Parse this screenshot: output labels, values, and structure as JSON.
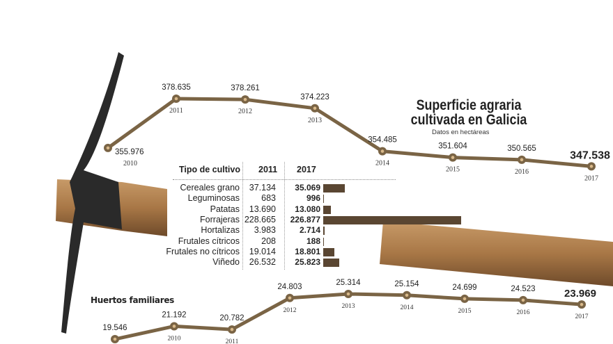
{
  "title": "Superficie agraria cultivada en Galicia",
  "title_line1": "Superficie agraria",
  "title_line2": "cultivada en Galicia",
  "subtitle": "Datos en hectáreas",
  "colors": {
    "line": "#7a6445",
    "bar": "#5a4632",
    "marker_fill": "#d9b98a"
  },
  "chart_data": [
    {
      "type": "line",
      "title": "Superficie agraria cultivada en Galicia",
      "x": [
        "2010",
        "2011",
        "2012",
        "2013",
        "2014",
        "2015",
        "2016",
        "2017"
      ],
      "values": [
        355976,
        378635,
        378261,
        374223,
        354485,
        351604,
        350565,
        347538
      ],
      "labels": [
        "355.976",
        "378.635",
        "378.261",
        "374.223",
        "354.485",
        "351.604",
        "350.565",
        "347.538"
      ]
    },
    {
      "type": "table",
      "headers": [
        "Tipo de cultivo",
        "2011",
        "2017"
      ],
      "rows": [
        {
          "name": "Cereales grano",
          "v2011": "37.134",
          "v2017": "35.069",
          "value": 35069
        },
        {
          "name": "Leguminosas",
          "v2011": "683",
          "v2017": "996",
          "value": 996
        },
        {
          "name": "Patatas",
          "v2011": "13.690",
          "v2017": "13.080",
          "value": 13080
        },
        {
          "name": "Forrajeras",
          "v2011": "228.665",
          "v2017": "226.877",
          "value": 226877
        },
        {
          "name": "Hortalizas",
          "v2011": "3.983",
          "v2017": "2.714",
          "value": 2714
        },
        {
          "name": "Frutales cítricos",
          "v2011": "208",
          "v2017": "188",
          "value": 188
        },
        {
          "name": "Frutales no cítricos",
          "v2011": "19.014",
          "v2017": "18.801",
          "value": 18801
        },
        {
          "name": "Viñedo",
          "v2011": "26.532",
          "v2017": "25.823",
          "value": 25823
        }
      ]
    },
    {
      "type": "line",
      "title": "Huertos familiares",
      "x": [
        "",
        "2010",
        "2011",
        "2012",
        "2013",
        "2014",
        "2015",
        "2016",
        "2017"
      ],
      "values": [
        19546,
        21192,
        20782,
        24803,
        25314,
        25154,
        24699,
        24523,
        23969
      ],
      "labels": [
        "19.546",
        "21.192",
        "20.782",
        "24.803",
        "25.314",
        "25.154",
        "24.699",
        "24.523",
        "23.969"
      ]
    }
  ]
}
